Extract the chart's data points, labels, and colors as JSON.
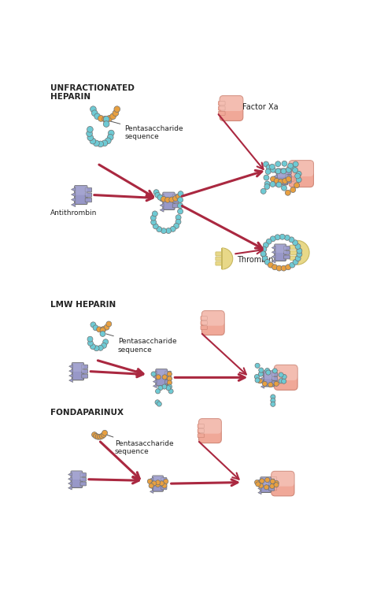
{
  "bg": "#ffffff",
  "cyan": "#6ecad4",
  "orange": "#e8a040",
  "purple": "#9898c8",
  "purple_light": "#b0b0d8",
  "salmon": "#f0a898",
  "salmon_dark": "#d08878",
  "yellow": "#e8d888",
  "yellow_dark": "#c8b860",
  "arrow_col": "#aa2840",
  "outline": "#707070",
  "text": "#222222",
  "label_ufh": "UNFRACTIONATED\nHEPARIN",
  "label_lmwh": "LMW HEPARIN",
  "label_fonda": "FONDAPARINUX",
  "label_penta": "Pentasaccharide\nsequence",
  "label_at": "Antithrombin",
  "label_fxa": "Factor Xa",
  "label_thr": "Thrombin"
}
